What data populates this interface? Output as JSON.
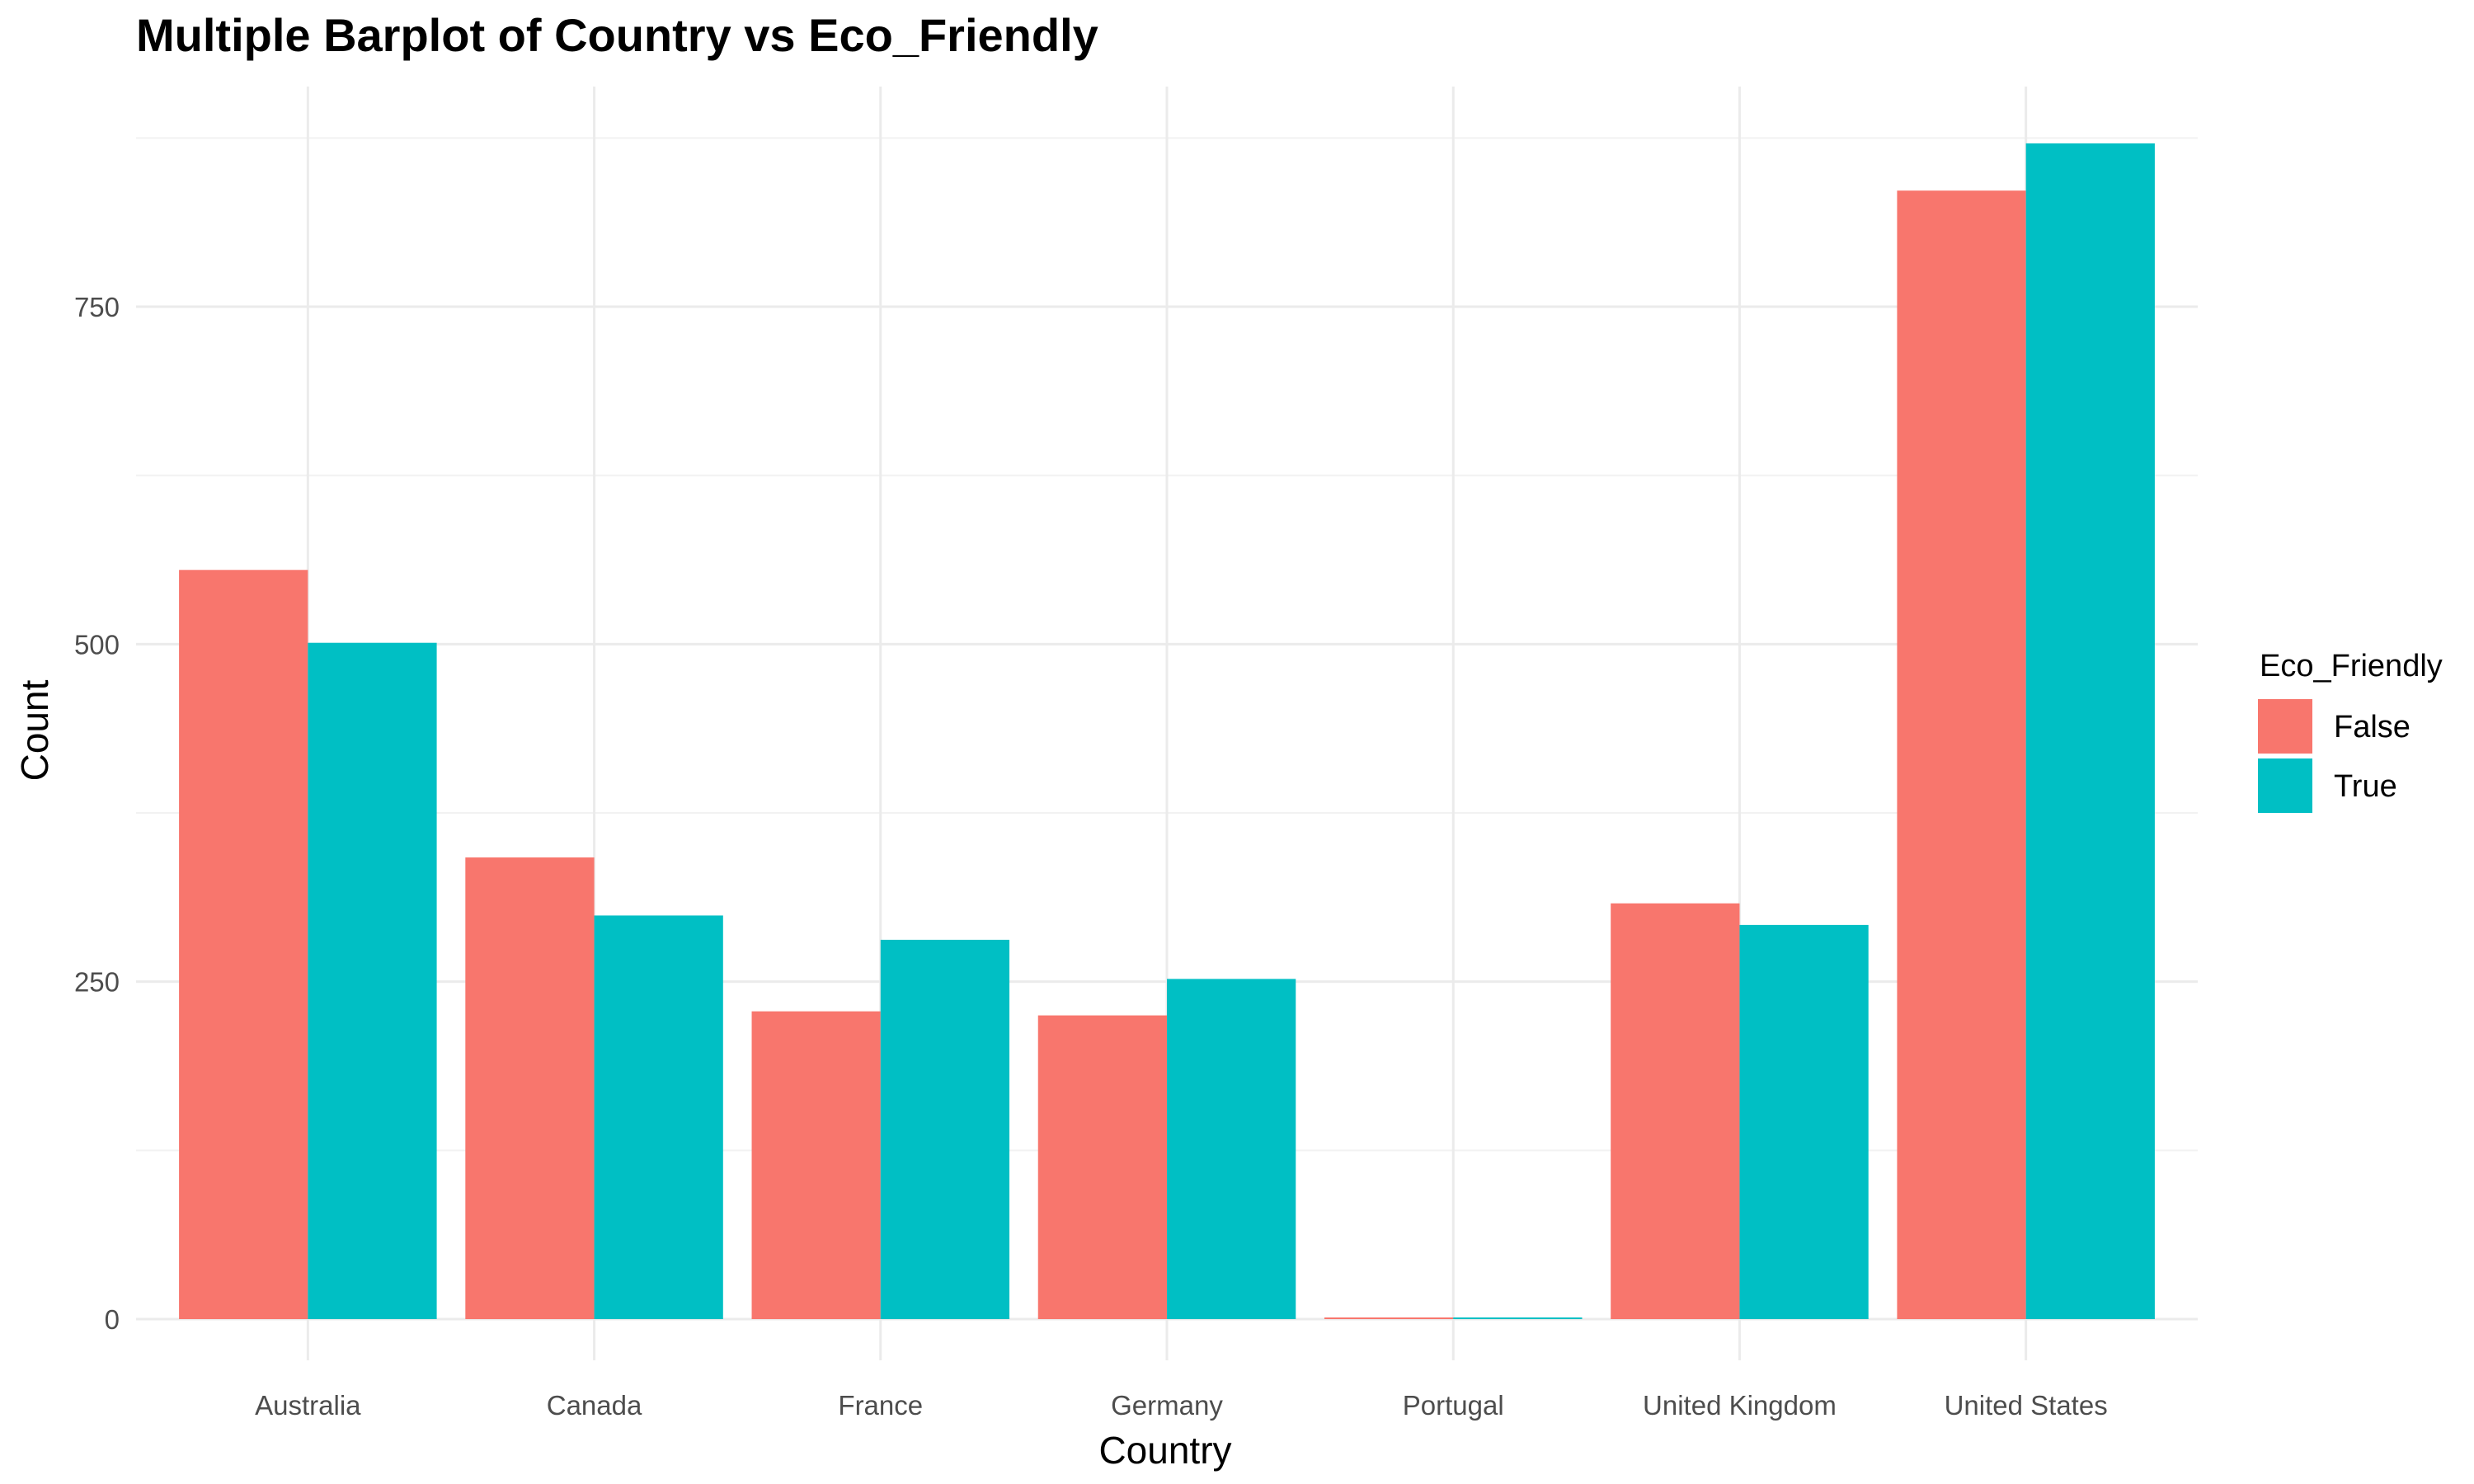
{
  "chart_data": {
    "type": "bar",
    "title": "Multiple Barplot of Country vs Eco_Friendly",
    "xlabel": "Country",
    "ylabel": "Count",
    "categories": [
      "Australia",
      "Canada",
      "France",
      "Germany",
      "Portugal",
      "United Kingdom",
      "United States"
    ],
    "series": [
      {
        "name": "False",
        "color": "#F8766D",
        "values": [
          555,
          342,
          228,
          225,
          1,
          308,
          836
        ]
      },
      {
        "name": "True",
        "color": "#00BFC4",
        "values": [
          501,
          299,
          281,
          252,
          1,
          292,
          871
        ]
      }
    ],
    "ylim": [
      0,
      880
    ],
    "yticks": [
      0,
      250,
      500,
      750
    ],
    "grid": true,
    "legend": {
      "title": "Eco_Friendly",
      "position": "right",
      "labels": [
        "False",
        "True"
      ]
    }
  }
}
